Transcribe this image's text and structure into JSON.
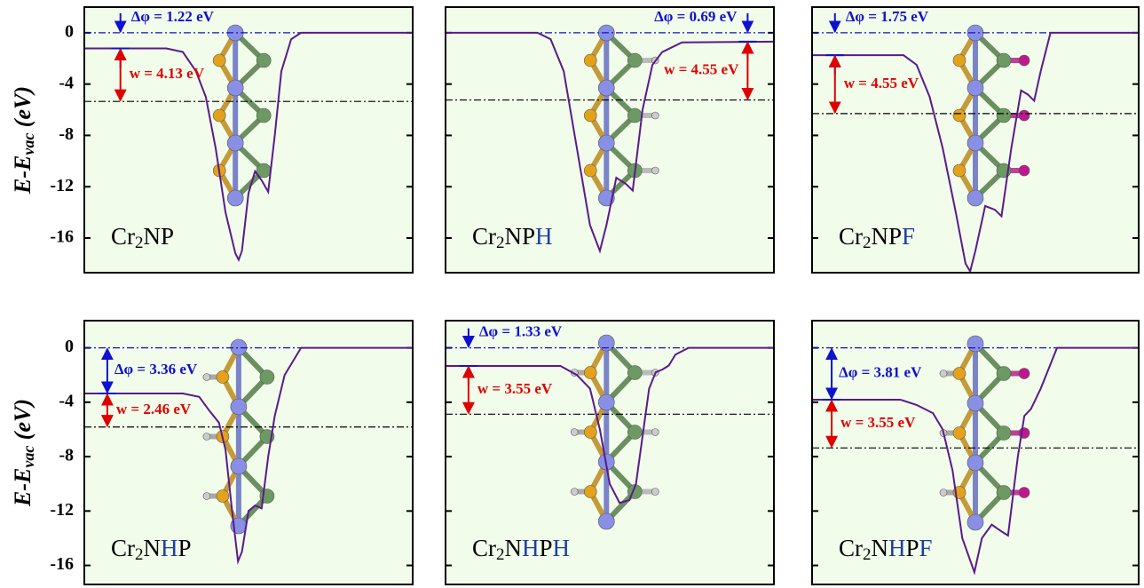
{
  "chart_data": [
    {
      "type": "line",
      "label": [
        {
          "text": "Cr"
        },
        {
          "text": "2",
          "sub": true
        },
        {
          "text": "NP"
        }
      ],
      "ylabel": [
        {
          "text": "E"
        },
        {
          "text": "-"
        },
        {
          "text": "E"
        },
        {
          "text": "vac",
          "sub": true
        },
        {
          "text": " (eV)"
        }
      ],
      "x": [
        0,
        25,
        30,
        34,
        37,
        40,
        43,
        46,
        47,
        48,
        50,
        52,
        54,
        56,
        58,
        60,
        63,
        66,
        100
      ],
      "values": [
        -1.22,
        -1.22,
        -1.5,
        -3,
        -5,
        -9,
        -14,
        -17.2,
        -17.7,
        -17,
        -12.5,
        -10.8,
        -11.5,
        -12.4,
        -8,
        -3,
        -0.5,
        0,
        0
      ],
      "color": "#5a1a8c",
      "xlim": [
        0,
        100
      ],
      "ylim": [
        -18.7,
        2
      ],
      "yticks": [
        0,
        -4,
        -8,
        -12,
        -16
      ],
      "ytick_labels": true,
      "levels": {
        "vacuum": 0,
        "plateau": -1.22,
        "fermi": -5.35
      },
      "dphi": {
        "value": 1.22,
        "label": "Δφ = 1.22 eV"
      },
      "w": {
        "value": 4.13,
        "label": "w = 4.13 eV"
      }
    },
    {
      "type": "line",
      "label": [
        {
          "text": "Cr"
        },
        {
          "text": "2",
          "sub": true
        },
        {
          "text": "NP"
        },
        {
          "text": "H",
          "color": "#1f3f9f"
        }
      ],
      "x": [
        0,
        28,
        32,
        36,
        40,
        44,
        47,
        49,
        52,
        55,
        57,
        60,
        63,
        66,
        72,
        100
      ],
      "values": [
        0,
        0,
        -0.5,
        -3,
        -9,
        -15,
        -17,
        -15,
        -11.3,
        -11.8,
        -12.3,
        -6,
        -2.5,
        -1.5,
        -0.75,
        -0.69
      ],
      "color": "#5a1a8c",
      "xlim": [
        0,
        100
      ],
      "ylim": [
        -18.7,
        2
      ],
      "yticks": [
        0,
        -4,
        -8,
        -12,
        -16
      ],
      "ytick_labels": false,
      "levels": {
        "vacuum": 0,
        "plateau": -0.69,
        "fermi": -5.24
      },
      "dphi": {
        "value": 0.69,
        "label": "Δφ = 0.69 eV"
      },
      "w": {
        "value": 4.55,
        "label": "w = 4.55 eV"
      }
    },
    {
      "type": "line",
      "label": [
        {
          "text": "Cr"
        },
        {
          "text": "2",
          "sub": true
        },
        {
          "text": "NP"
        },
        {
          "text": "F",
          "color": "#1f3f9f"
        }
      ],
      "x": [
        0,
        28,
        32,
        36,
        40,
        44,
        47,
        48.4,
        50,
        53,
        56,
        58,
        61,
        64,
        66,
        68,
        70,
        73,
        100
      ],
      "values": [
        -1.75,
        -1.75,
        -2.5,
        -5,
        -9,
        -14,
        -18,
        -18.6,
        -17,
        -13.5,
        -13.8,
        -14.3,
        -9,
        -4.5,
        -4.8,
        -5.3,
        -3,
        0,
        0
      ],
      "color": "#5a1a8c",
      "xlim": [
        0,
        100
      ],
      "ylim": [
        -18.7,
        2
      ],
      "yticks": [
        0,
        -4,
        -8,
        -12,
        -16
      ],
      "ytick_labels": false,
      "levels": {
        "vacuum": 0,
        "plateau": -1.75,
        "fermi": -6.3
      },
      "dphi": {
        "value": 1.75,
        "label": "Δφ = 1.75 eV"
      },
      "w": {
        "value": 4.55,
        "label": "w = 4.55 eV"
      }
    },
    {
      "type": "line",
      "label": [
        {
          "text": "Cr"
        },
        {
          "text": "2",
          "sub": true
        },
        {
          "text": "N"
        },
        {
          "text": "H",
          "color": "#1f3f9f"
        },
        {
          "text": "P"
        }
      ],
      "ylabel": [
        {
          "text": "E"
        },
        {
          "text": "-"
        },
        {
          "text": "E"
        },
        {
          "text": "vac",
          "sub": true
        },
        {
          "text": " (eV)"
        }
      ],
      "x": [
        0,
        30,
        35,
        38,
        41,
        43,
        45,
        46.8,
        48,
        50,
        52,
        54,
        56,
        58,
        61,
        66,
        100
      ],
      "values": [
        -3.36,
        -3.36,
        -3.6,
        -4.6,
        -5.5,
        -7.5,
        -12,
        -15.7,
        -15,
        -12,
        -11.6,
        -11.8,
        -8,
        -5,
        -2,
        0,
        0
      ],
      "color": "#5a1a8c",
      "xlim": [
        0,
        100
      ],
      "ylim": [
        -17.4,
        2
      ],
      "yticks": [
        0,
        -4,
        -8,
        -12,
        -16
      ],
      "ytick_labels": true,
      "levels": {
        "vacuum": 0,
        "plateau": -3.36,
        "fermi": -5.82
      },
      "dphi": {
        "value": 3.36,
        "label": "Δφ = 3.36 eV"
      },
      "w": {
        "value": 2.46,
        "label": "w = 2.46 eV"
      }
    },
    {
      "type": "line",
      "label": [
        {
          "text": "Cr"
        },
        {
          "text": "2",
          "sub": true
        },
        {
          "text": "N"
        },
        {
          "text": "H",
          "color": "#1f3f9f"
        },
        {
          "text": "P"
        },
        {
          "text": "H",
          "color": "#1f3f9f"
        }
      ],
      "x": [
        0,
        35,
        40,
        44,
        47,
        50,
        53,
        56,
        58,
        62,
        64,
        66,
        68,
        70,
        74,
        100
      ],
      "values": [
        -1.33,
        -1.33,
        -2,
        -3,
        -6,
        -10,
        -11.4,
        -11.2,
        -10,
        -3,
        -1.8,
        -1.6,
        -1.3,
        -0.5,
        0,
        0
      ],
      "color": "#5a1a8c",
      "xlim": [
        0,
        100
      ],
      "ylim": [
        -17.4,
        2
      ],
      "yticks": [
        0,
        -4,
        -8,
        -12,
        -16
      ],
      "ytick_labels": false,
      "levels": {
        "vacuum": 0,
        "plateau": -1.33,
        "fermi": -4.88
      },
      "dphi": {
        "value": 1.33,
        "label": "Δφ = 1.33 eV"
      },
      "w": {
        "value": 3.55,
        "label": "w = 3.55 eV"
      }
    },
    {
      "type": "line",
      "label": [
        {
          "text": "Cr"
        },
        {
          "text": "2",
          "sub": true
        },
        {
          "text": "N"
        },
        {
          "text": "H",
          "color": "#1f3f9f"
        },
        {
          "text": "P"
        },
        {
          "text": "F",
          "color": "#1f3f9f"
        }
      ],
      "x": [
        0,
        27,
        32,
        37,
        40,
        43,
        46,
        49.7,
        52,
        55,
        58,
        60,
        63,
        65,
        67,
        70,
        75,
        100
      ],
      "values": [
        -3.81,
        -3.81,
        -4.2,
        -4.8,
        -6,
        -9,
        -14,
        -16.5,
        -14,
        -13,
        -13.5,
        -13.8,
        -8,
        -5,
        -4.5,
        -3,
        0,
        0
      ],
      "color": "#5a1a8c",
      "xlim": [
        0,
        100
      ],
      "ylim": [
        -17.4,
        2
      ],
      "yticks": [
        0,
        -4,
        -8,
        -12,
        -16
      ],
      "ytick_labels": false,
      "levels": {
        "vacuum": 0,
        "plateau": -3.81,
        "fermi": -7.36
      },
      "dphi": {
        "value": 3.81,
        "label": "Δφ = 3.81 eV"
      },
      "w": {
        "value": 3.55,
        "label": "w = 3.55 eV"
      }
    }
  ]
}
